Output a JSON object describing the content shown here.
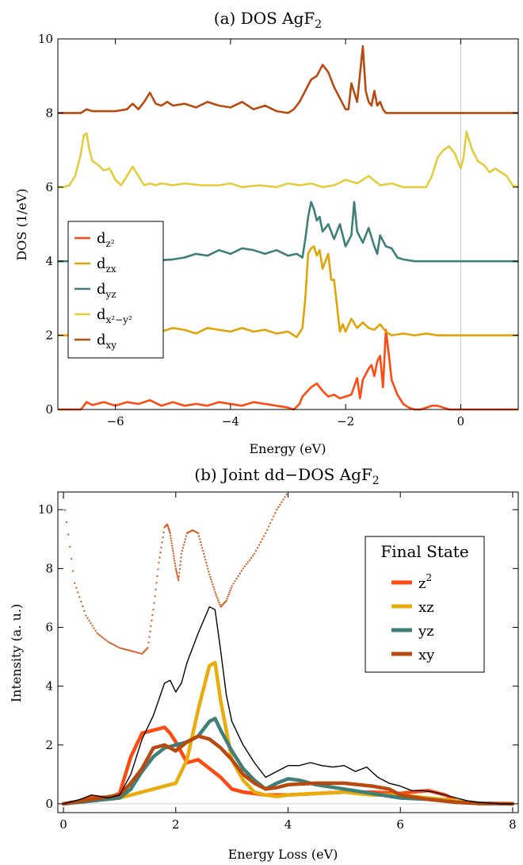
{
  "chart_data": [
    {
      "type": "line",
      "title": "(a) DOS AgF",
      "title_sub": "2",
      "xlabel": "Energy (eV)",
      "ylabel": "DOS (1/eV)",
      "xlim": [
        -7,
        1
      ],
      "ylim": [
        0,
        10
      ],
      "xticks": [
        -6,
        -4,
        -2,
        0
      ],
      "yticks": [
        0,
        2,
        4,
        6,
        8,
        10
      ],
      "grid": false,
      "vline_x": 0,
      "legend": "left-center",
      "series": [
        {
          "name": "d",
          "sub": "z²",
          "color": "#ff4a12",
          "x": [
            -7,
            -6.8,
            -6.6,
            -6.5,
            -6.4,
            -6.2,
            -6,
            -5.8,
            -5.6,
            -5.4,
            -5.2,
            -5,
            -4.8,
            -4.6,
            -4.4,
            -4.2,
            -4,
            -3.8,
            -3.6,
            -3.4,
            -3.2,
            -3,
            -2.9,
            -2.8,
            -2.75,
            -2.6,
            -2.5,
            -2.4,
            -2.3,
            -2.2,
            -2.1,
            -2,
            -1.9,
            -1.8,
            -1.75,
            -1.7,
            -1.6,
            -1.55,
            -1.5,
            -1.45,
            -1.4,
            -1.35,
            -1.3,
            -1.25,
            -1.2,
            -1.1,
            -1,
            -0.9,
            -0.8,
            -0.7,
            -0.6,
            -0.5,
            -0.4,
            -0.3,
            -0.2,
            -0.1,
            0,
            0.2,
            0.4,
            0.6,
            0.8,
            1
          ],
          "y": [
            0,
            0,
            0,
            0.2,
            0.12,
            0.2,
            0.1,
            0.2,
            0.15,
            0.25,
            0.1,
            0.2,
            0.1,
            0.15,
            0.1,
            0.2,
            0.15,
            0.1,
            0.2,
            0.15,
            0.1,
            0.05,
            0,
            0.15,
            0.35,
            0.6,
            0.7,
            0.5,
            0.35,
            0.4,
            0.3,
            0.35,
            0.4,
            0.85,
            0.3,
            0.8,
            1.1,
            1.2,
            0.9,
            1.3,
            1.45,
            0.6,
            2.15,
            1.5,
            0.8,
            0.4,
            0.15,
            0.05,
            0,
            0,
            0.05,
            0.1,
            0.1,
            0.05,
            0,
            0,
            0,
            0,
            0,
            0,
            0,
            0
          ]
        },
        {
          "name": "d",
          "sub": "zx",
          "color": "#e0a408",
          "x": [
            -7,
            -6.8,
            -6.6,
            -6.5,
            -6.4,
            -6.2,
            -6,
            -5.8,
            -5.6,
            -5.4,
            -5.2,
            -5,
            -4.8,
            -4.6,
            -4.4,
            -4.2,
            -4,
            -3.8,
            -3.6,
            -3.4,
            -3.2,
            -3,
            -2.85,
            -2.75,
            -2.7,
            -2.65,
            -2.6,
            -2.55,
            -2.5,
            -2.45,
            -2.4,
            -2.3,
            -2.25,
            -2.2,
            -2.1,
            -2.05,
            -2,
            -1.9,
            -1.8,
            -1.7,
            -1.6,
            -1.5,
            -1.4,
            -1.3,
            -1.2,
            -1,
            -0.8,
            -0.6,
            -0.4,
            -0.2,
            0,
            0.2,
            0.4,
            0.6,
            0.8,
            1
          ],
          "y": [
            2,
            2,
            2.05,
            2.3,
            2.1,
            2.35,
            2.1,
            2.3,
            2.15,
            2.25,
            2.1,
            2.2,
            2.15,
            2.05,
            2.2,
            2.15,
            2.1,
            2.2,
            2.1,
            2.15,
            2.05,
            2.1,
            1.95,
            2.2,
            3.0,
            4.2,
            4.35,
            4.4,
            4.15,
            4.3,
            3.8,
            4.2,
            3.5,
            3.5,
            2.1,
            2.3,
            2.1,
            2.45,
            2.2,
            2.35,
            2.2,
            2.15,
            2.3,
            2.1,
            2.0,
            2.05,
            2.0,
            2.05,
            2.0,
            2.0,
            2.0,
            2.0,
            2.0,
            2.0,
            2.0,
            2.0
          ]
        },
        {
          "name": "d",
          "sub": "yz",
          "color": "#3f7f7a",
          "x": [
            -7,
            -6.5,
            -6,
            -5.5,
            -5,
            -4.8,
            -4.6,
            -4.4,
            -4.2,
            -4,
            -3.8,
            -3.6,
            -3.4,
            -3.2,
            -3,
            -2.85,
            -2.75,
            -2.7,
            -2.65,
            -2.6,
            -2.55,
            -2.5,
            -2.45,
            -2.4,
            -2.3,
            -2.2,
            -2.1,
            -2,
            -1.9,
            -1.85,
            -1.8,
            -1.7,
            -1.6,
            -1.5,
            -1.45,
            -1.4,
            -1.3,
            -1.2,
            -1.1,
            -1,
            -0.8,
            -0.6,
            -0.4,
            -0.2,
            0,
            0.2,
            0.4,
            0.6,
            0.8,
            1
          ],
          "y": [
            4,
            4,
            4,
            4,
            4.05,
            4.1,
            4.2,
            4.15,
            4.3,
            4.2,
            4.35,
            4.3,
            4.2,
            4.3,
            4.15,
            4.2,
            4.1,
            4.6,
            5.2,
            5.6,
            5.4,
            5.1,
            5.2,
            4.8,
            5.0,
            4.6,
            5.0,
            4.4,
            4.7,
            5.6,
            4.8,
            4.5,
            4.9,
            4.4,
            4.2,
            4.7,
            4.4,
            4.35,
            4.1,
            4.05,
            4.0,
            4.0,
            4.0,
            4.0,
            4.0,
            4.0,
            4.0,
            4.0,
            4.0,
            4.0
          ]
        },
        {
          "name": "d",
          "sub": "x²−y²",
          "color": "#e4cc3c",
          "x": [
            -7,
            -6.9,
            -6.8,
            -6.7,
            -6.6,
            -6.55,
            -6.5,
            -6.45,
            -6.4,
            -6.3,
            -6.2,
            -6.1,
            -6,
            -5.9,
            -5.8,
            -5.7,
            -5.6,
            -5.5,
            -5.4,
            -5.3,
            -5.2,
            -5,
            -4.8,
            -4.5,
            -4.2,
            -4,
            -3.8,
            -3.5,
            -3.2,
            -3,
            -2.8,
            -2.6,
            -2.4,
            -2.2,
            -2,
            -1.8,
            -1.6,
            -1.4,
            -1.2,
            -1,
            -0.8,
            -0.6,
            -0.5,
            -0.4,
            -0.3,
            -0.2,
            -0.1,
            0,
            0.05,
            0.1,
            0.2,
            0.3,
            0.4,
            0.5,
            0.6,
            0.8,
            0.9,
            1
          ],
          "y": [
            6,
            6,
            6.05,
            6.3,
            6.9,
            7.4,
            7.45,
            7.0,
            6.7,
            6.6,
            6.45,
            6.5,
            6.2,
            6.05,
            6.3,
            6.55,
            6.3,
            6.05,
            6.1,
            6.05,
            6.1,
            6.05,
            6.1,
            6.05,
            6.05,
            6.1,
            6.0,
            6.05,
            6.0,
            6.1,
            6.05,
            6.1,
            6.0,
            6.05,
            6.2,
            6.1,
            6.3,
            6.05,
            6.1,
            6.0,
            6.0,
            6.0,
            6.3,
            6.8,
            7.0,
            7.1,
            6.9,
            6.5,
            6.8,
            7.5,
            7.0,
            6.7,
            6.6,
            6.4,
            6.5,
            6.3,
            6.05,
            6.0
          ]
        },
        {
          "name": "d",
          "sub": "xy",
          "color": "#b84a10",
          "x": [
            -7,
            -6.8,
            -6.6,
            -6.5,
            -6.4,
            -6.2,
            -6,
            -5.8,
            -5.7,
            -5.6,
            -5.5,
            -5.4,
            -5.3,
            -5.2,
            -5.1,
            -5,
            -4.8,
            -4.6,
            -4.4,
            -4.2,
            -4,
            -3.8,
            -3.6,
            -3.4,
            -3.2,
            -3,
            -2.9,
            -2.8,
            -2.7,
            -2.6,
            -2.5,
            -2.4,
            -2.3,
            -2.2,
            -2.1,
            -2,
            -1.95,
            -1.9,
            -1.8,
            -1.7,
            -1.65,
            -1.6,
            -1.55,
            -1.5,
            -1.45,
            -1.4,
            -1.35,
            -1.3,
            -1.2,
            -1.1,
            -1,
            -0.8,
            -0.6,
            -0.4,
            -0.2,
            0,
            0.2,
            0.4,
            0.6,
            0.8,
            1
          ],
          "y": [
            8,
            8,
            8,
            8.1,
            8.05,
            8.05,
            8.05,
            8.1,
            8.25,
            8.1,
            8.3,
            8.55,
            8.25,
            8.2,
            8.3,
            8.2,
            8.25,
            8.15,
            8.3,
            8.2,
            8.15,
            8.3,
            8.1,
            8.2,
            8.05,
            8.0,
            8.1,
            8.3,
            8.6,
            8.9,
            9.0,
            9.3,
            9.1,
            8.7,
            8.4,
            8.1,
            8.1,
            8.8,
            8.3,
            9.8,
            8.6,
            8.3,
            8.2,
            8.6,
            8.2,
            8.3,
            8.1,
            8.0,
            8.0,
            8.0,
            8.0,
            8.0,
            8.0,
            8.0,
            8.0,
            8.0,
            8.0,
            8.0,
            8.0,
            8.0,
            8.0
          ]
        }
      ]
    },
    {
      "type": "line",
      "title": "(b) Joint dd−DOS AgF",
      "title_sub": "2",
      "xlabel": "Energy Loss (eV)",
      "ylabel": "Intensity (a. u.)",
      "xlim": [
        -0.1,
        8.1
      ],
      "ylim": [
        -0.3,
        10.6
      ],
      "xticks": [
        0,
        2,
        4,
        6,
        8
      ],
      "yticks": [
        0,
        2,
        4,
        6,
        8,
        10
      ],
      "grid": false,
      "legend": "top-right",
      "legend_title": "Final State",
      "total": {
        "color": "#000000",
        "x": [
          0,
          0.3,
          0.5,
          0.8,
          1,
          1.2,
          1.4,
          1.6,
          1.8,
          1.9,
          2,
          2.1,
          2.2,
          2.4,
          2.6,
          2.7,
          2.8,
          2.9,
          3,
          3.2,
          3.4,
          3.6,
          3.8,
          4,
          4.2,
          4.4,
          4.6,
          4.8,
          5,
          5.2,
          5.4,
          5.6,
          5.8,
          6,
          6.2,
          6.4,
          6.6,
          6.8,
          7,
          7.2,
          7.4,
          7.6,
          7.8,
          8
        ],
        "y": [
          0,
          0.15,
          0.3,
          0.2,
          0.3,
          1.0,
          2.2,
          3.0,
          4.1,
          4.2,
          3.8,
          4.1,
          4.8,
          5.8,
          6.7,
          6.6,
          5.2,
          3.7,
          2.8,
          2.0,
          1.4,
          0.9,
          1.1,
          1.3,
          1.3,
          1.4,
          1.3,
          1.25,
          1.3,
          1.1,
          1.25,
          0.9,
          0.7,
          0.6,
          0.45,
          0.45,
          0.4,
          0.3,
          0.2,
          0.1,
          0.05,
          0.02,
          0,
          0
        ]
      },
      "series": [
        {
          "name": "z",
          "sup": "2",
          "color": "#ff4a12",
          "x": [
            0,
            0.3,
            0.5,
            0.8,
            1,
            1.2,
            1.4,
            1.6,
            1.8,
            1.9,
            2,
            2.2,
            2.4,
            2.6,
            2.8,
            3,
            3.2,
            3.4,
            3.6,
            3.8,
            4,
            4.5,
            5,
            5.5,
            6,
            6.2,
            6.5,
            6.8,
            7,
            7.4,
            8
          ],
          "y": [
            0,
            0.1,
            0.25,
            0.2,
            0.35,
            1.6,
            2.4,
            2.5,
            2.6,
            2.4,
            2.1,
            1.4,
            1.5,
            1.2,
            0.9,
            0.5,
            0.4,
            0.35,
            0.3,
            0.3,
            0.3,
            0.35,
            0.4,
            0.4,
            0.35,
            0.4,
            0.45,
            0.3,
            0.1,
            0.02,
            0
          ]
        },
        {
          "name": "xz",
          "color": "#e8ac0c",
          "x": [
            0,
            0.5,
            1,
            1.2,
            1.4,
            1.6,
            1.8,
            2,
            2.2,
            2.4,
            2.6,
            2.7,
            2.8,
            3,
            3.2,
            3.4,
            3.6,
            3.8,
            4,
            4.5,
            5,
            5.5,
            6,
            6.5,
            7,
            7.4,
            8
          ],
          "y": [
            0,
            0.1,
            0.2,
            0.3,
            0.4,
            0.5,
            0.6,
            0.7,
            1.5,
            3.2,
            4.7,
            4.8,
            3.5,
            1.5,
            0.8,
            0.4,
            0.3,
            0.25,
            0.3,
            0.35,
            0.4,
            0.3,
            0.3,
            0.2,
            0.1,
            0.02,
            0
          ]
        },
        {
          "name": "yz",
          "color": "#3f7f7a",
          "x": [
            0,
            0.5,
            1,
            1.2,
            1.4,
            1.6,
            1.8,
            2,
            2.2,
            2.4,
            2.6,
            2.7,
            2.8,
            3,
            3.2,
            3.4,
            3.6,
            3.8,
            4,
            4.2,
            4.5,
            5,
            5.5,
            6,
            6.5,
            7,
            7.4,
            8
          ],
          "y": [
            0,
            0.1,
            0.2,
            0.5,
            1.1,
            1.6,
            1.9,
            2.0,
            2.1,
            2.3,
            2.8,
            2.9,
            2.5,
            1.8,
            1.2,
            0.8,
            0.5,
            0.7,
            0.85,
            0.8,
            0.65,
            0.5,
            0.35,
            0.2,
            0.15,
            0.05,
            0.01,
            0
          ]
        },
        {
          "name": "xy",
          "color": "#b84a10",
          "x": [
            0,
            0.5,
            1,
            1.2,
            1.4,
            1.6,
            1.8,
            2,
            2.2,
            2.4,
            2.6,
            2.8,
            3,
            3.2,
            3.4,
            3.6,
            3.8,
            4,
            4.5,
            5,
            5.5,
            5.8,
            6,
            6.5,
            7,
            7.4,
            8
          ],
          "y": [
            0,
            0.15,
            0.3,
            0.7,
            1.2,
            1.9,
            2.0,
            1.8,
            2.1,
            2.3,
            2.2,
            1.9,
            1.5,
            1.0,
            0.7,
            0.5,
            0.55,
            0.65,
            0.7,
            0.7,
            0.6,
            0.5,
            0.3,
            0.15,
            0.05,
            0.01,
            0
          ]
        }
      ],
      "experimental": {
        "color": "#d4622a",
        "x": [
          0,
          0.2,
          0.4,
          0.6,
          0.8,
          1,
          1.2,
          1.4,
          1.5,
          1.6,
          1.7,
          1.8,
          1.85,
          1.9,
          1.95,
          2,
          2.05,
          2.1,
          2.2,
          2.3,
          2.4,
          2.5,
          2.6,
          2.7,
          2.8,
          2.9,
          3,
          3.2,
          3.4,
          3.6,
          3.8,
          4
        ],
        "y": [
          10.4,
          7.5,
          6.4,
          5.8,
          5.5,
          5.3,
          5.2,
          5.1,
          5.3,
          6.6,
          8.2,
          9.4,
          9.5,
          9.2,
          8.6,
          8.0,
          7.6,
          8.5,
          9.2,
          9.3,
          9.2,
          8.5,
          7.8,
          7.2,
          6.7,
          6.9,
          7.4,
          8.0,
          8.5,
          9.2,
          10.0,
          10.6
        ]
      }
    }
  ]
}
